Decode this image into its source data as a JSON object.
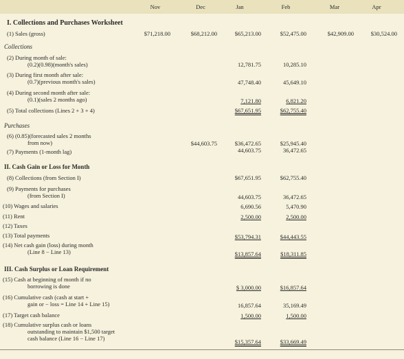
{
  "columns": [
    "Nov",
    "Dec",
    "Jan",
    "Feb",
    "Mar",
    "Apr"
  ],
  "section1": {
    "title": "I.  Collections and Purchases Worksheet",
    "row1": {
      "label": "(1)  Sales (gross)",
      "nov": "$71,218.00",
      "dec": "$68,212.00",
      "jan": "$65,213.00",
      "feb": "$52,475.00",
      "mar": "$42,909.00",
      "apr": "$30,524.00"
    },
    "collections_heading": "Collections",
    "row2": {
      "label1": "(2)  During month of sale:",
      "label2": "(0.2)(0.98)(month's sales)",
      "jan": "12,781.75",
      "feb": "10,285.10"
    },
    "row3": {
      "label1": "(3)  During first month after sale:",
      "label2": "(0.7)(previous month's sales)",
      "jan": "47,748.40",
      "feb": "45,649.10"
    },
    "row4": {
      "label1": "(4)  During second month after sale:",
      "label2": "(0.1)(sales 2 months ago)",
      "jan": "7,121.80",
      "feb": "6,821.20"
    },
    "row5": {
      "label": "(5)  Total collections (Lines 2 + 3 + 4)",
      "jan": "$67,651.95",
      "feb": "$62,755.40"
    },
    "purchases_heading": "Purchases",
    "row6": {
      "label1": "(6)  (0.85)(forecasted sales 2 months",
      "label2": "from now)",
      "dec": "$44,603.75",
      "jan": "$36,472.65",
      "feb": "$25,945.40"
    },
    "row7": {
      "label": "(7)  Payments (1-month lag)",
      "jan": "44,603.75",
      "feb": "36,472.65"
    }
  },
  "section2": {
    "title": "II.  Cash Gain or Loss for Month",
    "row8": {
      "label": "(8)  Collections (from Section I)",
      "jan": "$67,651.95",
      "feb": "$62,755.40"
    },
    "row9": {
      "label1": "(9)  Payments for purchases",
      "label2": "(from Section I)",
      "jan": "44,603.75",
      "feb": "36,472.65"
    },
    "row10": {
      "label": "(10)  Wages and salaries",
      "jan": "6,690.56",
      "feb": "5,470.90"
    },
    "row11": {
      "label": "(11)  Rent",
      "jan": "2,500.00",
      "feb": "2,500.00"
    },
    "row12": {
      "label": "(12)  Taxes"
    },
    "row13": {
      "label": "(13)  Total payments",
      "jan": "$53,794.31",
      "feb": "$44,443.55"
    },
    "row14": {
      "label1": "(14)  Net cash gain (loss) during month",
      "label2": "(Line 8 − Line 13)",
      "jan": "$13,857.64",
      "feb": "$18,311.85"
    }
  },
  "section3": {
    "title": "III.  Cash Surplus or Loan Requirement",
    "row15": {
      "label1": "(15)  Cash at beginning of month if no",
      "label2": "borrowing is done",
      "jan": "$  3,000.00",
      "feb": "$16,857.64"
    },
    "row16": {
      "label1": "(16)  Cumulative cash (cash at start +",
      "label2": "gain or − loss = Line 14 + Line 15)",
      "jan": "16,857.64",
      "feb": "35,169.49"
    },
    "row17": {
      "label": "(17)  Target cash balance",
      "jan": "1,500.00",
      "feb": "1,500.00"
    },
    "row18": {
      "label1": "(18)  Cumulative surplus cash or loans",
      "label2": "outstanding to maintain $1,500 target",
      "label3": "cash balance (Line 16 − Line 17)",
      "jan": "$15,357.64",
      "feb": "$33,669.49"
    }
  }
}
